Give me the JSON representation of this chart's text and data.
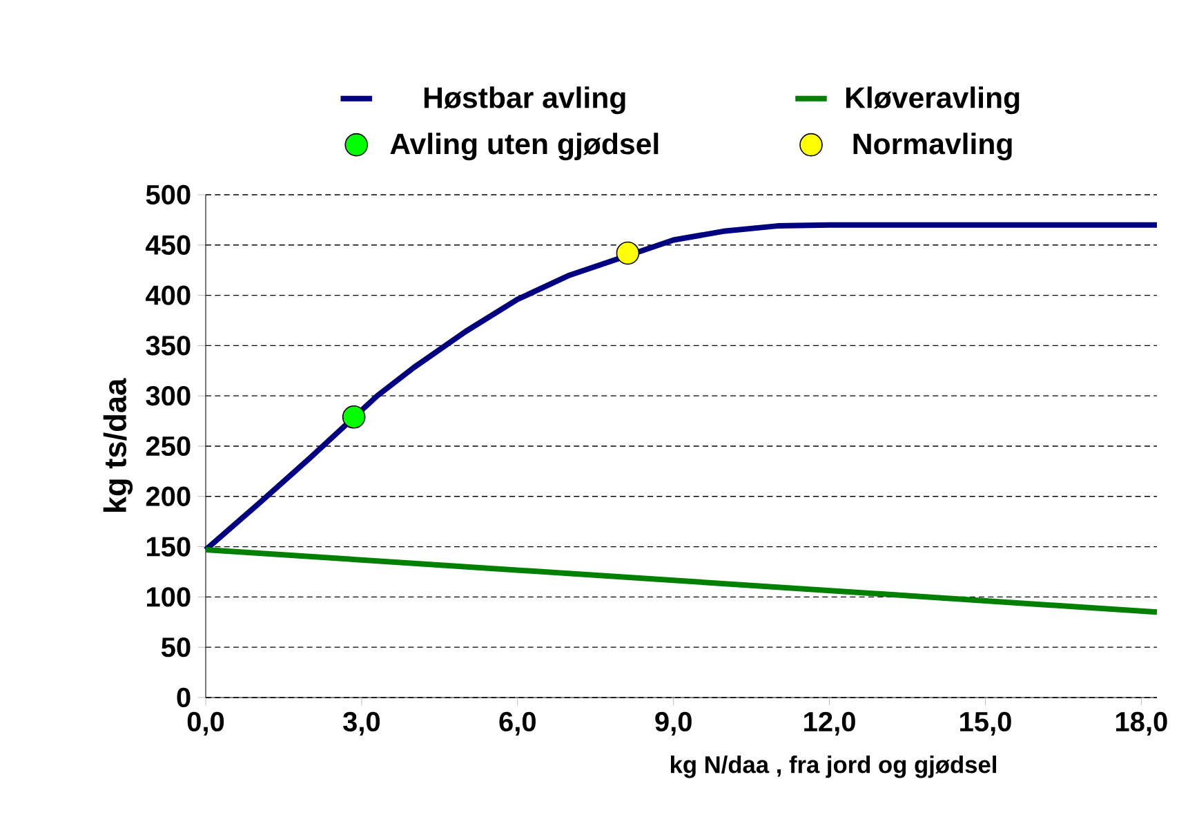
{
  "chart_data": {
    "type": "line",
    "xlabel": "kg N/daa , fra jord og gjødsel",
    "ylabel": "kg ts/daa",
    "xlim": [
      0,
      18.3
    ],
    "ylim": [
      0,
      500
    ],
    "xticks": [
      {
        "value": 0,
        "label": "0,0"
      },
      {
        "value": 3,
        "label": "3,0"
      },
      {
        "value": 6,
        "label": "6,0"
      },
      {
        "value": 9,
        "label": "9,0"
      },
      {
        "value": 12,
        "label": "12,0"
      },
      {
        "value": 15,
        "label": "15,0"
      },
      {
        "value": 18,
        "label": "18,0"
      }
    ],
    "yticks": [
      0,
      50,
      100,
      150,
      200,
      250,
      300,
      350,
      400,
      450,
      500
    ],
    "grid": "y",
    "legend": "top",
    "series": [
      {
        "name": "Høstbar avling",
        "marker": "none",
        "color": "#000080",
        "x": [
          0,
          1,
          2,
          3.3,
          4,
          5,
          6,
          7,
          8.6,
          9,
          10,
          11,
          12,
          13,
          18.3
        ],
        "values": [
          147,
          192,
          238,
          300,
          328,
          364,
          396,
          420,
          448,
          455,
          464,
          469,
          470,
          470,
          470
        ]
      },
      {
        "name": "Kløveravling",
        "marker": "none",
        "color": "#008000",
        "x": [
          0,
          18.3
        ],
        "values": [
          147,
          85
        ]
      },
      {
        "name": "Avling uten gjødsel",
        "type": "scatter",
        "marker": "circle",
        "color": "#00ff00",
        "x": [
          2.85
        ],
        "values": [
          279
        ]
      },
      {
        "name": "Normavling",
        "type": "scatter",
        "marker": "circle",
        "color": "#ffff00",
        "x": [
          8.12
        ],
        "values": [
          442
        ]
      }
    ]
  }
}
